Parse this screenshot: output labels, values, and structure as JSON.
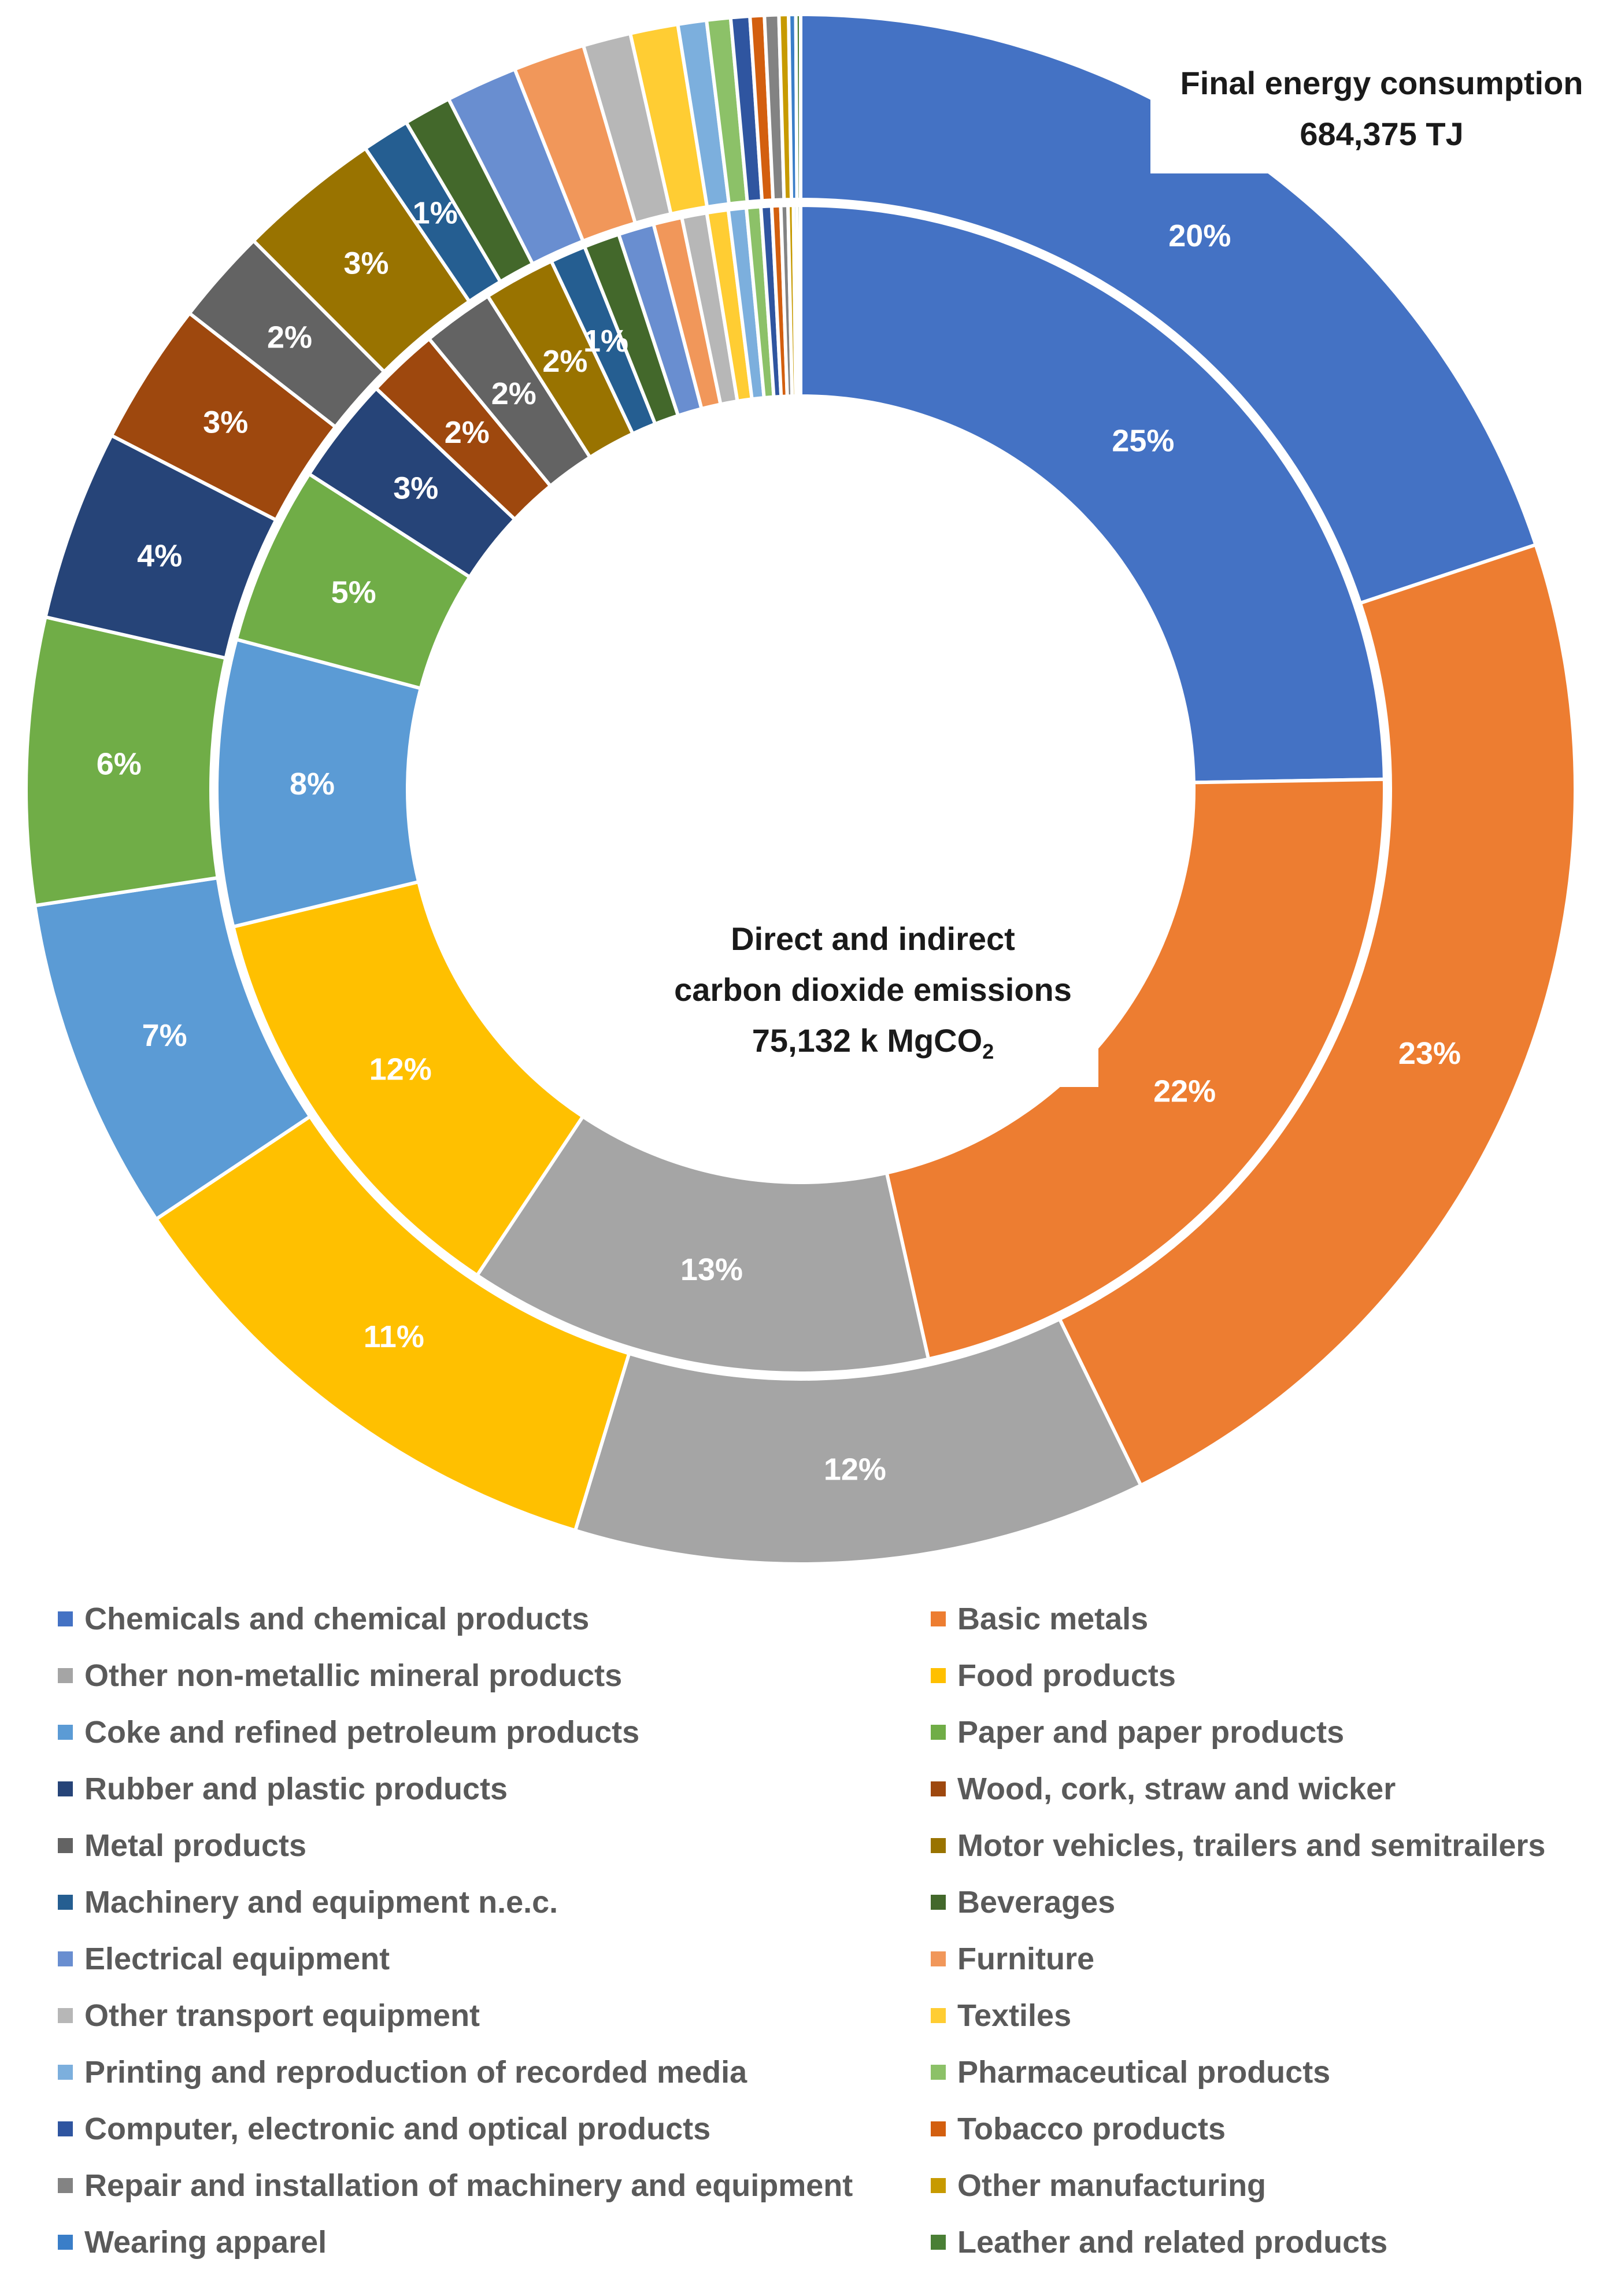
{
  "chart_data": {
    "type": "pie",
    "subtype": "double-donut",
    "outer_ring": {
      "title": "Final energy consumption",
      "total": "684,375 TJ",
      "values": [
        20,
        23,
        12,
        11,
        7,
        6,
        4,
        3,
        2,
        3,
        1,
        1,
        1.5,
        1.5,
        1,
        1,
        0.6,
        0.5,
        0.4,
        0.3,
        0.3,
        0.2,
        0.15,
        0.1
      ],
      "labels": [
        "20%",
        "23%",
        "12%",
        "11%",
        "7%",
        "6%",
        "4%",
        "3%",
        "2%",
        "3%",
        "1%",
        "",
        "",
        "",
        "",
        "",
        "",
        "",
        "",
        "",
        "",
        "",
        "",
        ""
      ]
    },
    "inner_ring": {
      "title_lines": [
        "Direct and indirect",
        "carbon dioxide emissions"
      ],
      "total": "75,132 k MgCO",
      "total_subscript": "2",
      "values": [
        25,
        22,
        13,
        12,
        8,
        5,
        3,
        2,
        2,
        2,
        1,
        1,
        1,
        0.8,
        0.7,
        0.6,
        0.5,
        0.4,
        0.3,
        0.25,
        0.2,
        0.15,
        0.1,
        0.1
      ],
      "labels": [
        "25%",
        "22%",
        "13%",
        "12%",
        "8%",
        "5%",
        "3%",
        "2%",
        "2%",
        "2%",
        "1%",
        "",
        "",
        "",
        "",
        "",
        "",
        "",
        "",
        "",
        "",
        "",
        "",
        ""
      ]
    },
    "categories": [
      "Chemicals and chemical products",
      "Basic metals",
      "Other non-metallic mineral products",
      "Food products",
      "Coke and refined petroleum products",
      "Paper and paper products",
      "Rubber and plastic products",
      "Wood, cork, straw and wicker",
      "Metal products",
      "Motor vehicles, trailers and semitrailers",
      "Machinery and equipment  n.e.c.",
      "Beverages",
      "Electrical  equipment",
      "Furniture",
      "Other transport equipment",
      "Textiles",
      "Printing and reproduction of recorded media",
      "Pharmaceutical products",
      "Computer, electronic and optical products",
      "Tobacco products",
      "Repair and installation of machinery and equipment",
      "Other manufacturing",
      "Wearing apparel",
      "Leather and related products"
    ],
    "colors": [
      "#4472C4",
      "#ED7D31",
      "#A5A5A5",
      "#FFC000",
      "#5B9BD5",
      "#70AD47",
      "#264478",
      "#9E480E",
      "#636363",
      "#997300",
      "#255E91",
      "#43682B",
      "#698ED0",
      "#F1975A",
      "#B7B7B7",
      "#FFCD33",
      "#7CAFDD",
      "#8CC168",
      "#2F55A0",
      "#D35F0F",
      "#838383",
      "#C79A00",
      "#3A7EC8",
      "#4A7F35"
    ],
    "legend_position": "bottom"
  }
}
